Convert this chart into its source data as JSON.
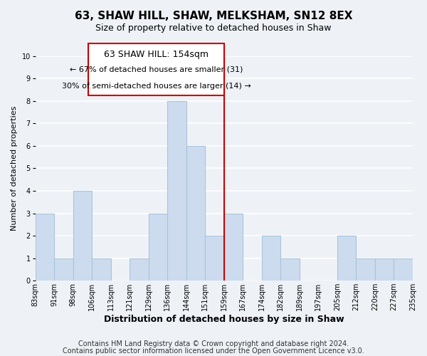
{
  "title": "63, SHAW HILL, SHAW, MELKSHAM, SN12 8EX",
  "subtitle": "Size of property relative to detached houses in Shaw",
  "xlabel": "Distribution of detached houses by size in Shaw",
  "ylabel": "Number of detached properties",
  "bin_labels": [
    "83sqm",
    "91sqm",
    "98sqm",
    "106sqm",
    "113sqm",
    "121sqm",
    "129sqm",
    "136sqm",
    "144sqm",
    "151sqm",
    "159sqm",
    "167sqm",
    "174sqm",
    "182sqm",
    "189sqm",
    "197sqm",
    "205sqm",
    "212sqm",
    "220sqm",
    "227sqm",
    "235sqm"
  ],
  "bar_heights": [
    3,
    1,
    4,
    1,
    0,
    1,
    3,
    8,
    6,
    2,
    3,
    0,
    2,
    1,
    0,
    0,
    2,
    1,
    1,
    1
  ],
  "bar_color": "#ccdcee",
  "bar_edgecolor": "#a8c4dc",
  "ylim": [
    0,
    10
  ],
  "yticks": [
    0,
    1,
    2,
    3,
    4,
    5,
    6,
    7,
    8,
    9,
    10
  ],
  "annotation_title": "63 SHAW HILL: 154sqm",
  "annotation_line1": "← 67% of detached houses are smaller (31)",
  "annotation_line2": "30% of semi-detached houses are larger (14) →",
  "annotation_box_color": "#ffffff",
  "annotation_box_edgecolor": "#cc0000",
  "property_line_color": "#cc0000",
  "footer1": "Contains HM Land Registry data © Crown copyright and database right 2024.",
  "footer2": "Contains public sector information licensed under the Open Government Licence v3.0.",
  "background_color": "#eef2f7",
  "plot_bg_color": "#eef2f7",
  "grid_color": "#ffffff",
  "title_fontsize": 11,
  "subtitle_fontsize": 9,
  "xlabel_fontsize": 9,
  "ylabel_fontsize": 8,
  "tick_fontsize": 7,
  "footer_fontsize": 7,
  "ann_title_fontsize": 9,
  "ann_text_fontsize": 8
}
